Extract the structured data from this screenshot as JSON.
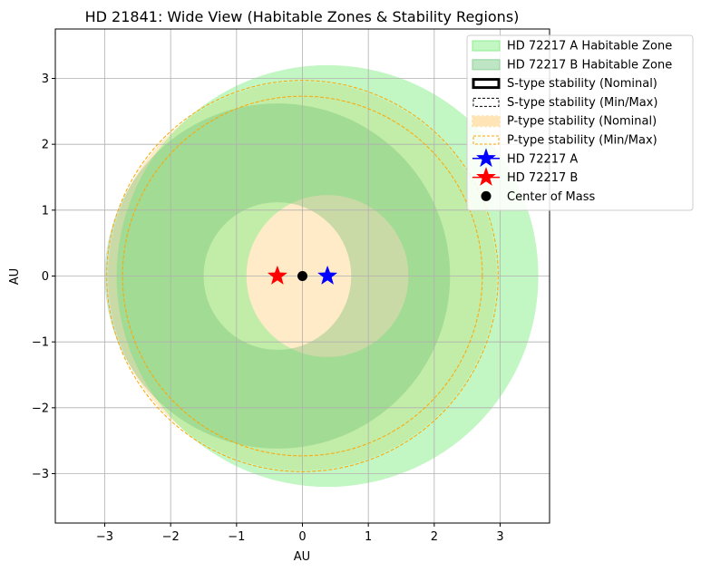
{
  "chart_data": {
    "type": "scatter",
    "title": "HD 21841: Wide View (Habitable Zones & Stability Regions)",
    "xlabel": "AU",
    "ylabel": "AU",
    "xlim": [
      -3.75,
      3.75
    ],
    "ylim": [
      -3.75,
      3.75
    ],
    "xticks": [
      -3,
      -2,
      -1,
      0,
      1,
      2,
      3
    ],
    "yticks": [
      -3,
      -2,
      -1,
      0,
      1,
      2,
      3
    ],
    "xtick_labels": [
      "−3",
      "−2",
      "−1",
      "0",
      "1",
      "2",
      "3"
    ],
    "ytick_labels": [
      "−3",
      "−2",
      "−1",
      "0",
      "1",
      "2",
      "3"
    ],
    "grid": true,
    "legend_position": "top-right",
    "stars": [
      {
        "name": "HD 72217  A",
        "x": 0.38,
        "y": 0.0,
        "marker": "star",
        "color": "#0000ff"
      },
      {
        "name": "HD 72217  B",
        "x": -0.38,
        "y": 0.0,
        "marker": "star",
        "color": "#ff0000"
      },
      {
        "name": "Center of Mass",
        "x": 0.0,
        "y": 0.0,
        "marker": "circle",
        "color": "#000000"
      }
    ],
    "habitable_zones": [
      {
        "name": "HD 72217  A Habitable Zone",
        "center": [
          0.38,
          0.0
        ],
        "inner_radius": 1.23,
        "outer_radius": 3.2,
        "color": "#90ee90",
        "alpha": 0.55
      },
      {
        "name": "HD 72217  B Habitable Zone",
        "center": [
          -0.38,
          0.0
        ],
        "inner_radius": 1.12,
        "outer_radius": 2.62,
        "color": "#66bb6a",
        "alpha": 0.35
      }
    ],
    "p_type_stability": {
      "nominal_radius": 2.95,
      "min_radius": 2.73,
      "max_radius": 2.97,
      "fill_color": "#ffe4b5",
      "line_color": "#ffa500"
    },
    "s_type_stability": {
      "nominal_label": "S-type stability (Nominal)",
      "minmax_label": "S-type stability (Min/Max)"
    },
    "legend": [
      {
        "label": "HD 72217  A Habitable Zone",
        "kind": "patch-green-light"
      },
      {
        "label": "HD 72217  B Habitable Zone",
        "kind": "patch-green"
      },
      {
        "label": "S-type stability (Nominal)",
        "kind": "line-black-thick"
      },
      {
        "label": "S-type stability (Min/Max)",
        "kind": "line-black-dashed"
      },
      {
        "label": "P-type stability (Nominal)",
        "kind": "line-orange-thick"
      },
      {
        "label": "P-type stability (Min/Max)",
        "kind": "line-orange-dashed"
      },
      {
        "label": "HD 72217  A",
        "kind": "marker-star-blue"
      },
      {
        "label": "HD 72217  B",
        "kind": "marker-star-red"
      },
      {
        "label": "Center of Mass",
        "kind": "marker-circle-black"
      }
    ]
  }
}
